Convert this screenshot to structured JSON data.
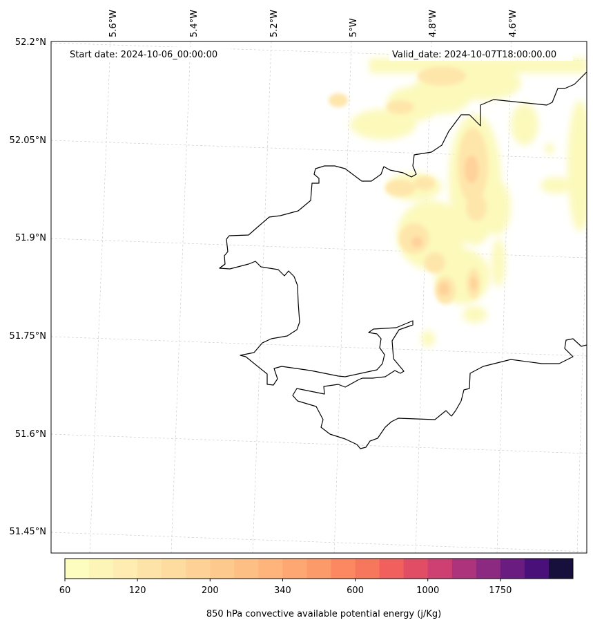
{
  "map": {
    "start_date": "Start date: 2024-10-06_00:00:00",
    "valid_date": "Valid_date: 2024-10-07T18:00:00.00",
    "lon_labels": [
      "5.6°W",
      "5.4°W",
      "5.2°W",
      "5°W",
      "4.8°W",
      "4.6°W"
    ],
    "lat_labels": [
      "52.2°N",
      "52.05°N",
      "51.9°N",
      "51.75°N",
      "51.6°N",
      "51.45°N"
    ]
  },
  "colorbar": {
    "title": "850 hPa convective available potential energy (j/Kg)",
    "tick_labels": [
      "60",
      "120",
      "200",
      "340",
      "600",
      "1000",
      "1750"
    ],
    "colors": [
      "#fcfdbf",
      "#fdf4b8",
      "#feecb0",
      "#fee3a8",
      "#fedb9f",
      "#fed296",
      "#fec98d",
      "#febf84",
      "#feb47b",
      "#fea772",
      "#fd9a6a",
      "#fb8861",
      "#f7775c",
      "#f1605d",
      "#e14d65",
      "#cd4071",
      "#ad347c",
      "#8c2981",
      "#6a1c81",
      "#4a1079",
      "#170f3c"
    ],
    "cmap": "magma_r"
  },
  "icons": {
    "coastline": "coastline-outline",
    "cape_field": "cape-shaded-field"
  }
}
